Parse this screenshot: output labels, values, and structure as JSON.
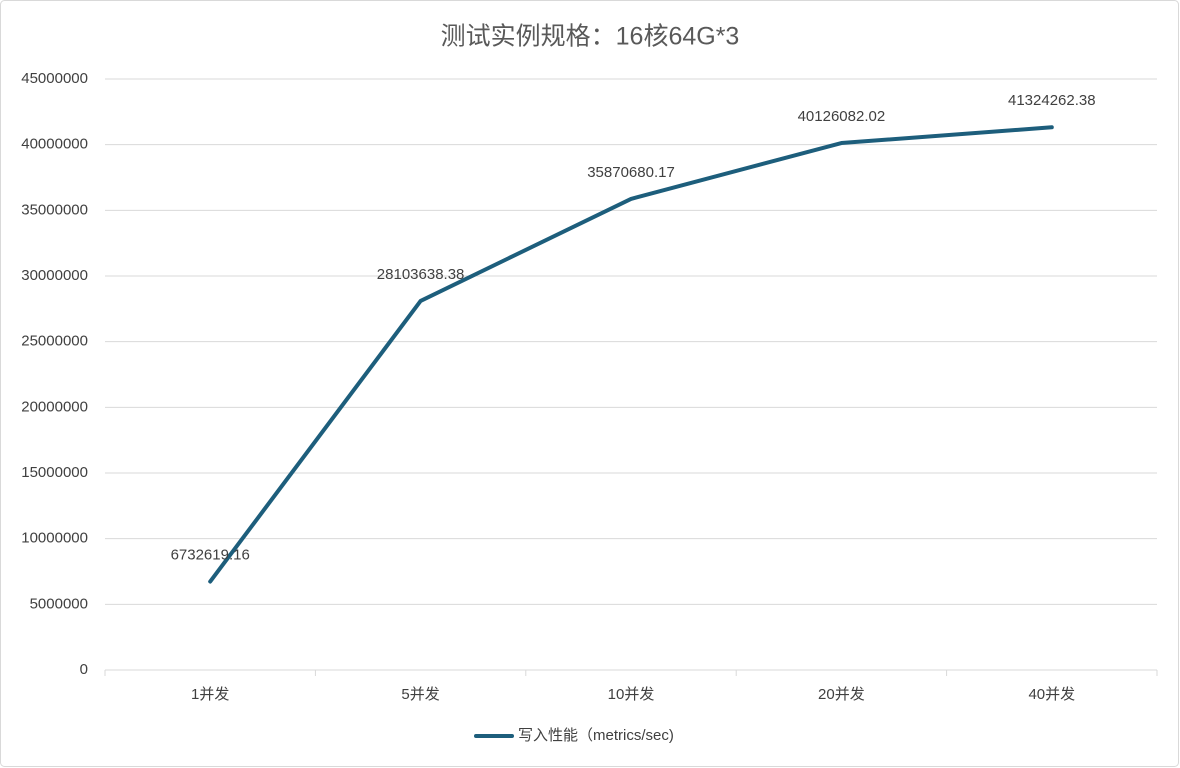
{
  "chart_data": {
    "type": "line",
    "title": "测试实例规格：16核64G*3",
    "categories": [
      "1并发",
      "5并发",
      "10并发",
      "20并发",
      "40并发"
    ],
    "series": [
      {
        "name": "写入性能（metrics/sec)",
        "color": "#1d5e7c",
        "values": [
          6732619.16,
          28103638.38,
          35870680.17,
          40126082.02,
          41324262.38
        ]
      }
    ],
    "ylim": [
      0,
      45000000
    ],
    "yticks": [
      0,
      5000000,
      10000000,
      15000000,
      20000000,
      25000000,
      30000000,
      35000000,
      40000000,
      45000000
    ],
    "grid": true,
    "legend": "bottom"
  }
}
